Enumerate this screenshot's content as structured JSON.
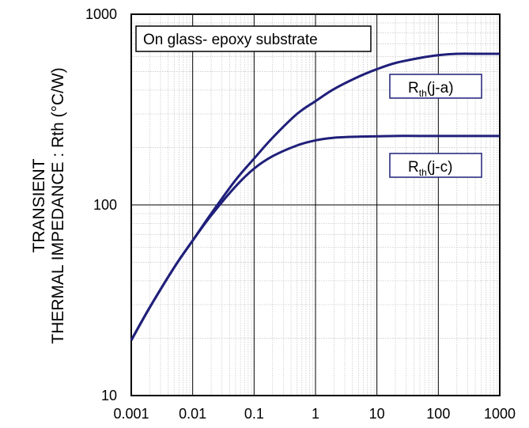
{
  "chart_data": {
    "type": "line",
    "title": "",
    "xlabel": "",
    "ylabel_line1": "TRANSIENT",
    "ylabel_line2": "THERMAL IMPEDANCE : Rth (°C/W)",
    "x_scale": "log",
    "y_scale": "log",
    "xlim": [
      0.001,
      1000
    ],
    "ylim": [
      10,
      1000
    ],
    "x_ticks": [
      "0.001",
      "0.01",
      "0.1",
      "1",
      "10",
      "100",
      "1000"
    ],
    "y_ticks": [
      "10",
      "100",
      "1000"
    ],
    "grid": true,
    "legend": "none",
    "annotation": "On glass- epoxy substrate",
    "series": [
      {
        "name": "Rth(j-a)",
        "label_main": "R",
        "label_sub": "th",
        "label_suffix": "(j-a)",
        "color": "#1f1f7a",
        "x": [
          0.001,
          0.002,
          0.005,
          0.01,
          0.02,
          0.05,
          0.1,
          0.2,
          0.5,
          1,
          2,
          5,
          10,
          20,
          50,
          100,
          200,
          500,
          1000
        ],
        "y": [
          19.5,
          29,
          47,
          65,
          90,
          135,
          175,
          225,
          300,
          350,
          405,
          470,
          515,
          555,
          590,
          610,
          620,
          620,
          620
        ]
      },
      {
        "name": "Rth(j-c)",
        "label_main": "R",
        "label_sub": "th",
        "label_suffix": "(j-c)",
        "color": "#1f1f7a",
        "x": [
          0.001,
          0.002,
          0.005,
          0.01,
          0.02,
          0.05,
          0.1,
          0.2,
          0.5,
          1,
          2,
          5,
          10,
          20,
          50,
          100,
          200,
          500,
          1000
        ],
        "y": [
          19.5,
          29,
          47,
          65,
          88,
          125,
          155,
          180,
          205,
          218,
          225,
          228,
          229,
          230,
          230,
          230,
          230,
          230,
          230
        ]
      }
    ]
  }
}
